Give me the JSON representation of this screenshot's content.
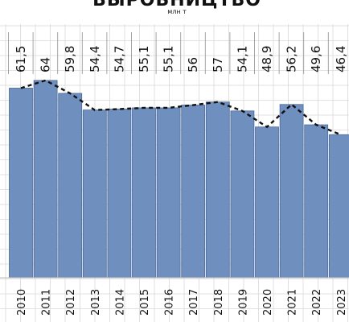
{
  "chart_data": {
    "type": "bar",
    "title": "ВЫРОБНИЦТВО",
    "subtitle": "млн т",
    "categories": [
      "2010",
      "2011",
      "2012",
      "2013",
      "2014",
      "2015",
      "2016",
      "2017",
      "2018",
      "2019",
      "2020",
      "2021",
      "2022",
      "2023"
    ],
    "values": [
      61.5,
      64,
      59.8,
      54.4,
      54.7,
      55.1,
      55.1,
      56,
      57,
      54.1,
      48.9,
      56.2,
      49.6,
      46.4
    ],
    "value_labels": [
      "61,5",
      "64",
      "59,8",
      "54,4",
      "54,7",
      "55,1",
      "55,1",
      "56",
      "57",
      "54,1",
      "48,9",
      "56,2",
      "49,6",
      "46,4"
    ],
    "series": [
      {
        "values": [
          61.5,
          64,
          59.8,
          54.4,
          54.7,
          55.1,
          55.1,
          56,
          57,
          54.1,
          48.9,
          56.2,
          49.6,
          46.4
        ]
      }
    ],
    "trend_line": {
      "style": "dashed",
      "values": [
        61.5,
        64,
        59.8,
        54.4,
        54.7,
        55.1,
        55.1,
        56,
        57,
        54.1,
        48.9,
        56.2,
        49.6,
        46.4
      ]
    },
    "ylim": [
      0,
      70
    ],
    "grid": true,
    "colors": {
      "bar": "#6f8fbe",
      "bar_stroke": "#4d6a98",
      "trend": "#111111",
      "grid": "#d9d9d9",
      "text": "#111111"
    }
  }
}
